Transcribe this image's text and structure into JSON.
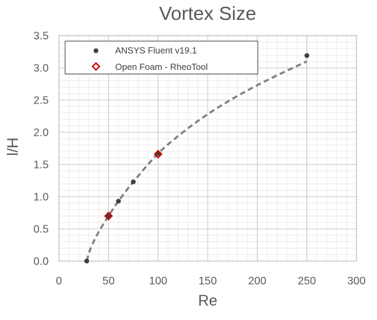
{
  "chart_data": {
    "type": "scatter",
    "title": "Vortex Size",
    "xlabel": "Re",
    "ylabel": "l/H",
    "xlim": [
      0,
      300
    ],
    "ylim": [
      0,
      3.5
    ],
    "x_ticks": [
      0,
      50,
      100,
      150,
      200,
      250,
      300
    ],
    "y_ticks": [
      0.0,
      0.5,
      1.0,
      1.5,
      2.0,
      2.5,
      3.0,
      3.5
    ],
    "x_tick_labels": [
      "0",
      "50",
      "100",
      "150",
      "200",
      "250",
      "300"
    ],
    "y_tick_labels": [
      "0.0",
      "0.5",
      "1.0",
      "1.5",
      "2.0",
      "2.5",
      "3.0",
      "3.5"
    ],
    "grid": true,
    "minor_grid": true,
    "legend_position": "top-left",
    "series": [
      {
        "name": "ANSYS Fluent v19.1",
        "marker": "circle",
        "color": "#404040",
        "points": [
          {
            "x": 28,
            "y": 0.0
          },
          {
            "x": 50,
            "y": 0.7
          },
          {
            "x": 60,
            "y": 0.93
          },
          {
            "x": 75,
            "y": 1.23
          },
          {
            "x": 100,
            "y": 1.67
          },
          {
            "x": 250,
            "y": 3.19
          }
        ]
      },
      {
        "name": "Open Foam - RheoTool",
        "marker": "diamond-open",
        "color": "#cc0000",
        "points": [
          {
            "x": 50,
            "y": 0.7
          },
          {
            "x": 100,
            "y": 1.66
          }
        ]
      }
    ],
    "trendline": {
      "style": "dashed",
      "color": "#808080",
      "points": [
        {
          "x": 28,
          "y": 0.0
        },
        {
          "x": 32,
          "y": 0.2
        },
        {
          "x": 40,
          "y": 0.45
        },
        {
          "x": 50,
          "y": 0.7
        },
        {
          "x": 60,
          "y": 0.93
        },
        {
          "x": 75,
          "y": 1.23
        },
        {
          "x": 100,
          "y": 1.67
        },
        {
          "x": 125,
          "y": 2.0
        },
        {
          "x": 150,
          "y": 2.28
        },
        {
          "x": 175,
          "y": 2.52
        },
        {
          "x": 200,
          "y": 2.73
        },
        {
          "x": 225,
          "y": 2.92
        },
        {
          "x": 250,
          "y": 3.1
        }
      ]
    }
  }
}
